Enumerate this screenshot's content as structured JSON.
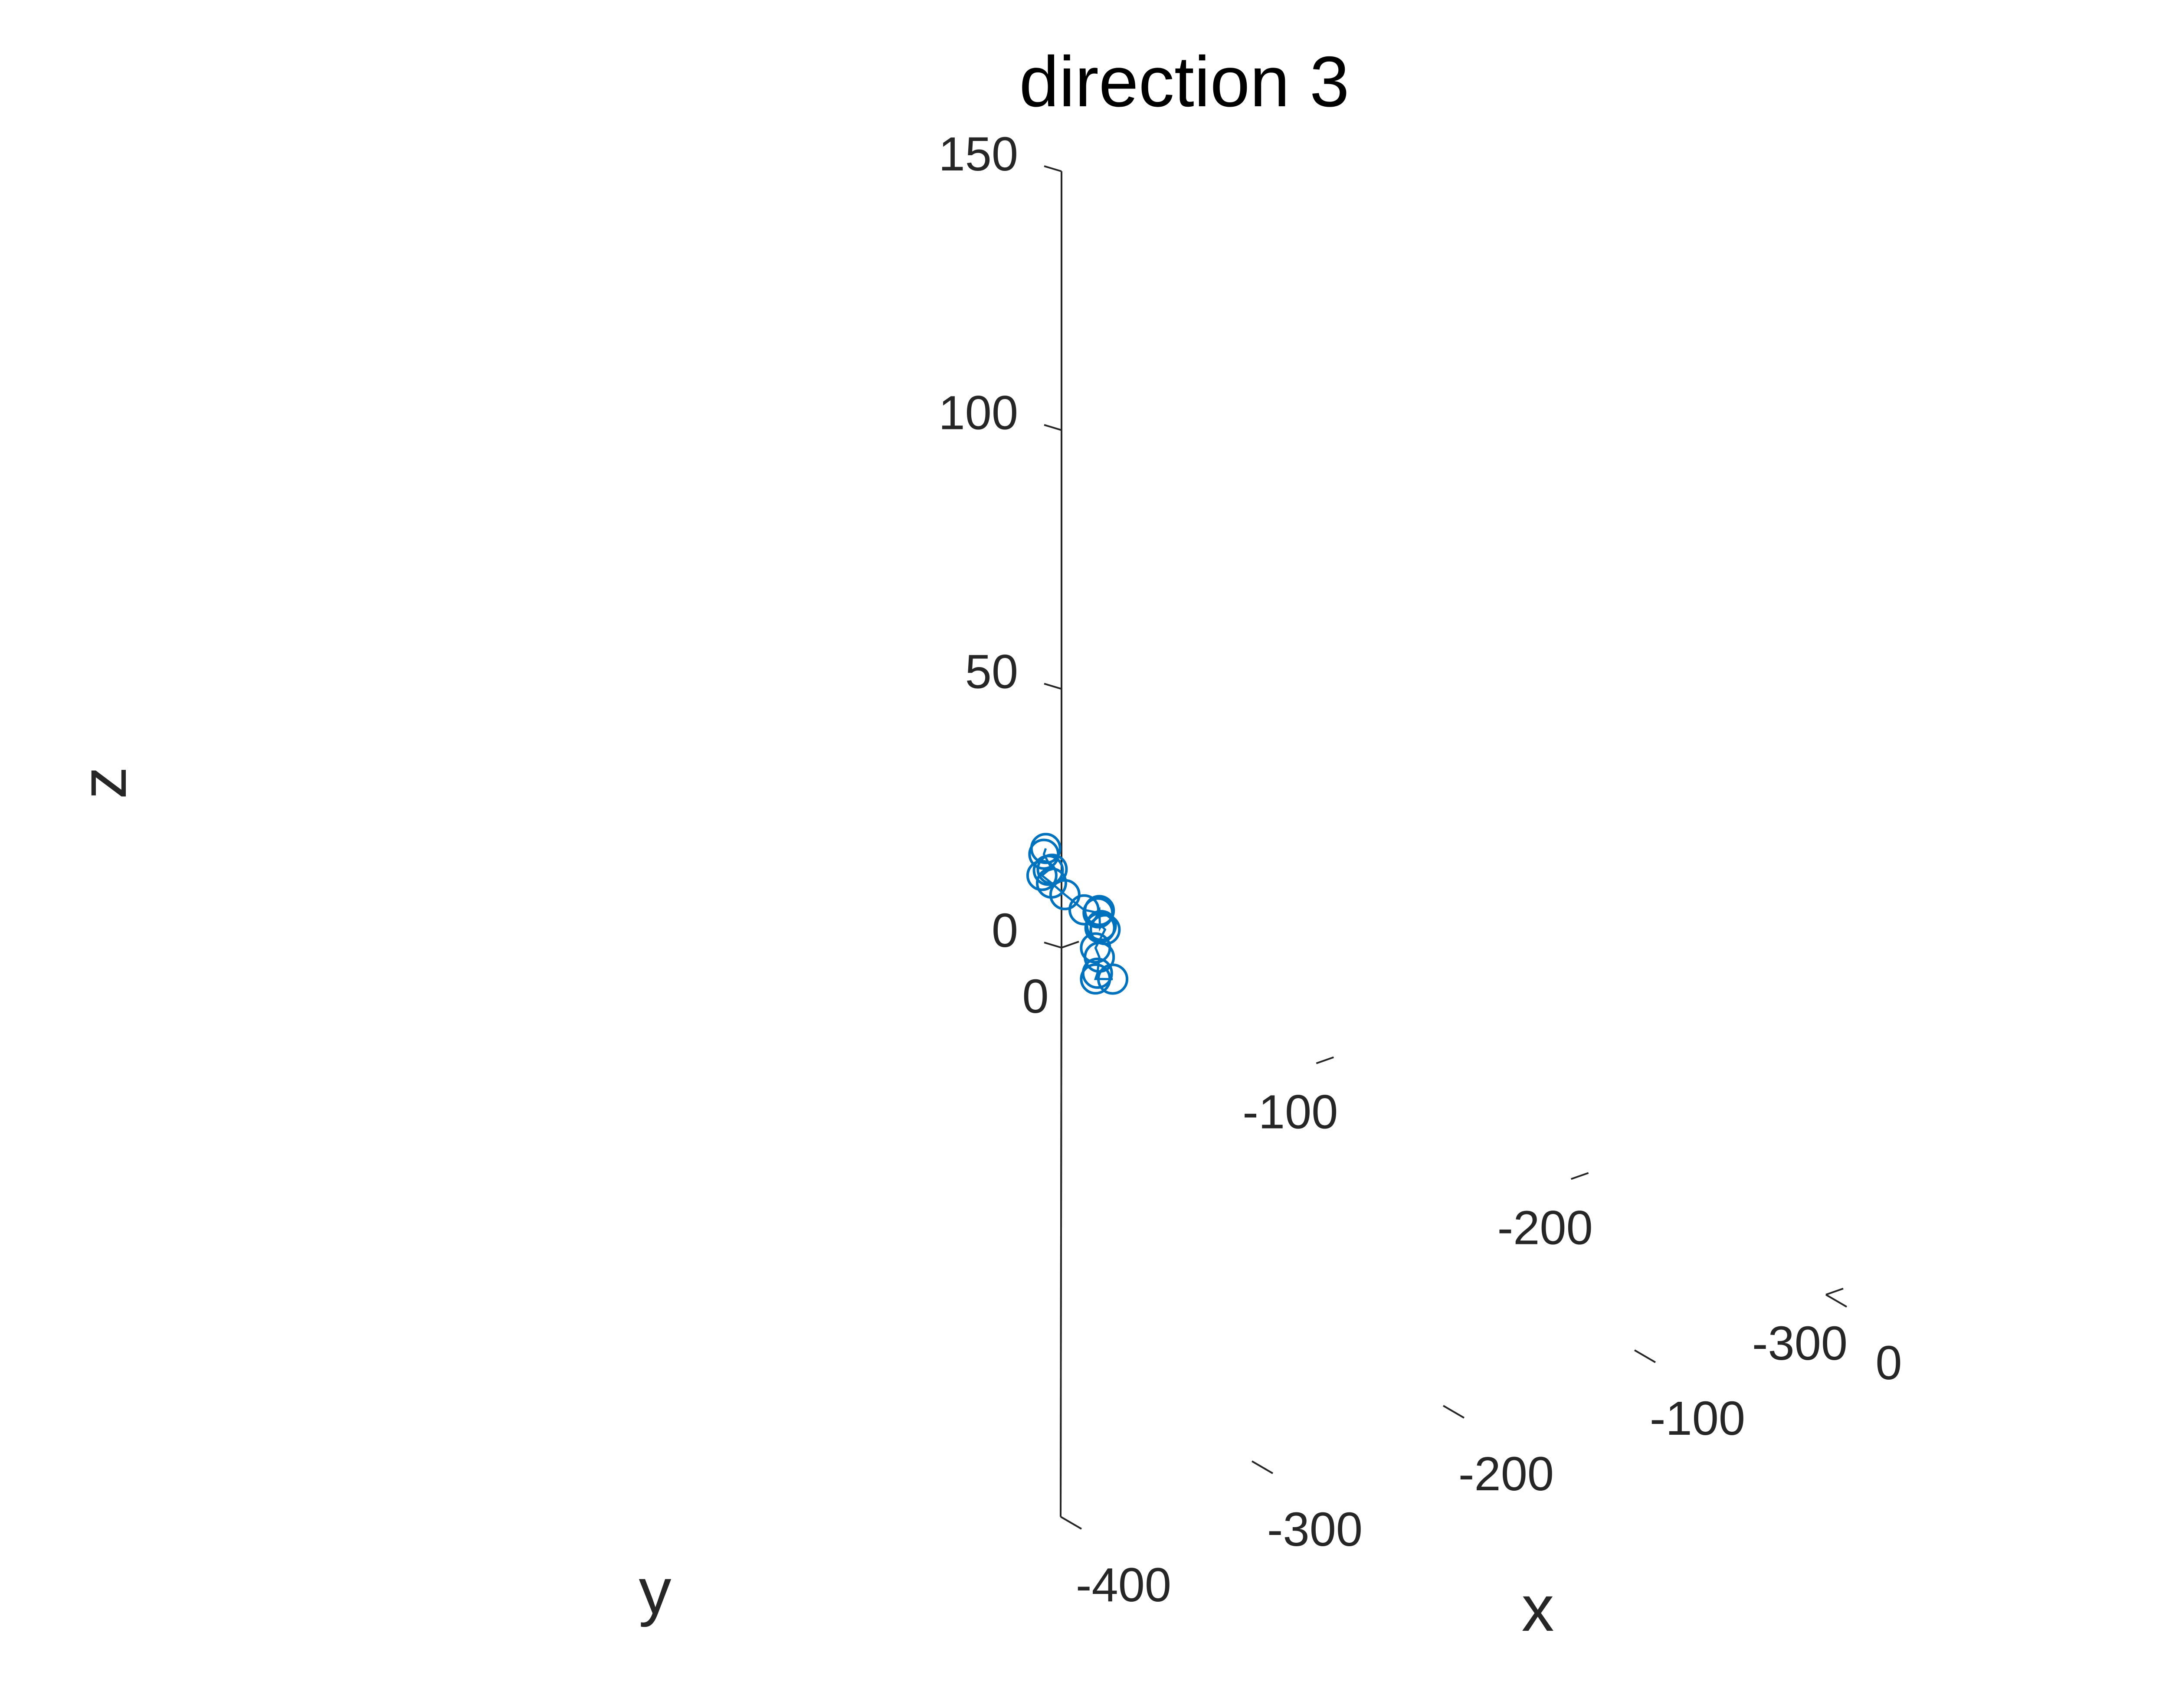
{
  "chart_data": {
    "type": "scatter",
    "title": "direction 3",
    "xlabel": "x",
    "ylabel": "y",
    "zlabel": "z",
    "xlim": [
      -400,
      0
    ],
    "ylim": [
      -300,
      0
    ],
    "zlim": [
      0,
      150
    ],
    "x_ticks": [
      0,
      -100,
      -200,
      -300,
      -400
    ],
    "y_ticks": [
      0,
      -100,
      -200,
      -300
    ],
    "z_ticks": [
      0,
      50,
      100,
      150
    ],
    "x_tick_labels": [
      "0",
      "-100",
      "-200",
      "-300",
      "-400"
    ],
    "y_tick_labels": [
      "0",
      "-100",
      "-200",
      "-300"
    ],
    "z_tick_labels": [
      "0",
      "50",
      "100",
      "150"
    ],
    "grid": false,
    "marker": "circle",
    "connected": true,
    "color": "#0072BD",
    "points": [
      {
        "x": -208,
        "y": -150,
        "z": 75
      },
      {
        "x": -209,
        "y": -150,
        "z": 74
      },
      {
        "x": -206,
        "y": -151,
        "z": 71
      },
      {
        "x": -208,
        "y": -151,
        "z": 71
      },
      {
        "x": -210,
        "y": -150,
        "z": 70
      },
      {
        "x": -205,
        "y": -150,
        "z": 68
      },
      {
        "x": -198,
        "y": -150,
        "z": 65
      },
      {
        "x": -188,
        "y": -150,
        "z": 61
      },
      {
        "x": -182,
        "y": -151,
        "z": 60
      },
      {
        "x": -180,
        "y": -150,
        "z": 60
      },
      {
        "x": -181,
        "y": -151,
        "z": 57
      },
      {
        "x": -179,
        "y": -150,
        "z": 57
      },
      {
        "x": -177,
        "y": -150,
        "z": 56
      },
      {
        "x": -182,
        "y": -150,
        "z": 53
      },
      {
        "x": -180,
        "y": -150,
        "z": 51
      },
      {
        "x": -181,
        "y": -150,
        "z": 48
      },
      {
        "x": -182,
        "y": -150,
        "z": 47
      },
      {
        "x": -173,
        "y": -150,
        "z": 46
      }
    ]
  }
}
